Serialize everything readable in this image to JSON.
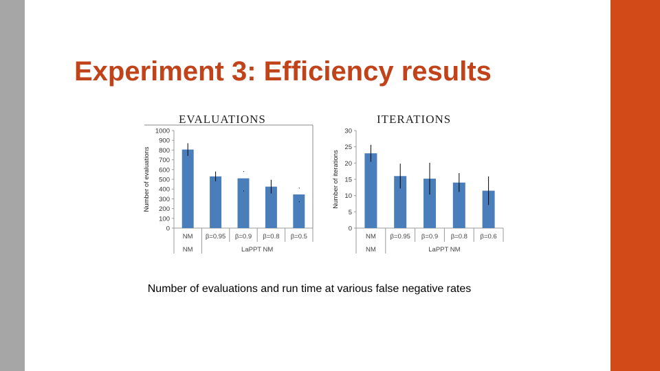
{
  "slide": {
    "title": "Experiment 3: Efficiency results",
    "caption": "Number of evaluations and run time at various false negative rates"
  },
  "colors": {
    "accent": "#d24a17",
    "title": "#c0431a",
    "sidebar": "#a6a6a6",
    "bar": "#4a7ebb"
  },
  "chart_data": [
    {
      "type": "bar",
      "title": "Evaluations",
      "ylabel": "Number of evaluations",
      "xlabel": "",
      "ylim": [
        0,
        1000
      ],
      "yticks": [
        0,
        100,
        200,
        300,
        400,
        500,
        600,
        700,
        800,
        900,
        1000
      ],
      "categories": [
        "NM",
        "β=0.95",
        "β=0.9",
        "β=0.8",
        "β=0.5"
      ],
      "groups": [
        {
          "label": "NM",
          "categories": [
            "NM"
          ]
        },
        {
          "label": "LaPPT NM",
          "categories": [
            "β=0.95",
            "β=0.9",
            "β=0.8",
            "β=0.5"
          ]
        }
      ],
      "values": [
        805,
        530,
        510,
        425,
        345
      ],
      "errors": [
        65,
        50,
        0,
        70,
        0
      ],
      "marks": [
        [],
        [],
        [
          580,
          380
        ],
        [],
        [
          410,
          270
        ]
      ]
    },
    {
      "type": "bar",
      "title": "Iterations",
      "ylabel": "Number of iterations",
      "xlabel": "",
      "ylim": [
        0,
        30
      ],
      "yticks": [
        0,
        5,
        10,
        15,
        20,
        25,
        30
      ],
      "categories": [
        "NM",
        "β=0.95",
        "β=0.9",
        "β=0.8",
        "β=0.6"
      ],
      "groups": [
        {
          "label": "NM",
          "categories": [
            "NM"
          ]
        },
        {
          "label": "LaPPT NM",
          "categories": [
            "β=0.95",
            "β=0.9",
            "β=0.8",
            "β=0.6"
          ]
        }
      ],
      "values": [
        23,
        16,
        15.2,
        14,
        11.5
      ],
      "errors": [
        2.6,
        3.8,
        4.9,
        2.9,
        4.4
      ],
      "marks": [
        [],
        [],
        [],
        [],
        []
      ]
    }
  ]
}
